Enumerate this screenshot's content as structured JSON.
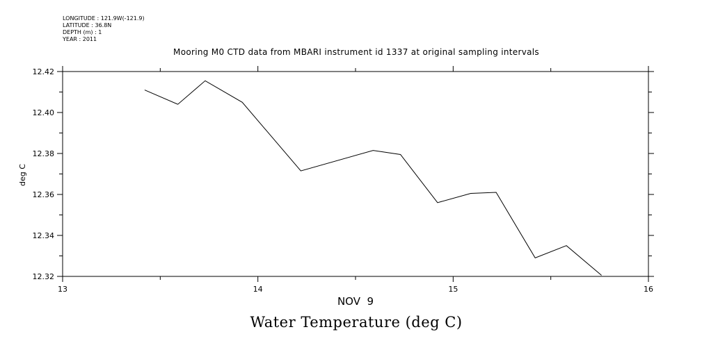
{
  "header": {
    "longitude": "LONGITUDE : 121.9W(-121.9)",
    "latitude": "LATITUDE : 36.8N",
    "depth": "DEPTH (m) : 1",
    "year": "YEAR : 2011"
  },
  "chart_data": {
    "type": "line",
    "title": "Mooring M0 CTD data from MBARI instrument id 1337 at original sampling intervals",
    "xlabel": "NOV  9",
    "ylabel": "deg C",
    "bottom_title": "Water Temperature (deg C)",
    "xlim": [
      13,
      16
    ],
    "ylim": [
      12.32,
      12.42
    ],
    "x_ticks": [
      13,
      14,
      15,
      16
    ],
    "x_tick_labels": [
      "13",
      "14",
      "15",
      "16"
    ],
    "y_ticks": [
      12.32,
      12.34,
      12.36,
      12.38,
      12.4,
      12.42
    ],
    "y_tick_labels": [
      "12.32",
      "12.34",
      "12.36",
      "12.38",
      "12.40",
      "12.42"
    ],
    "grid": false,
    "series": [
      {
        "x": [
          13.42,
          13.59,
          13.73,
          13.92,
          14.22,
          14.59,
          14.73,
          14.92,
          15.09,
          15.22,
          15.42,
          15.58,
          15.76
        ],
        "y": [
          12.411,
          12.404,
          12.4155,
          12.405,
          12.3715,
          12.3815,
          12.3795,
          12.356,
          12.3605,
          12.361,
          12.329,
          12.335,
          12.3205
        ]
      }
    ]
  }
}
